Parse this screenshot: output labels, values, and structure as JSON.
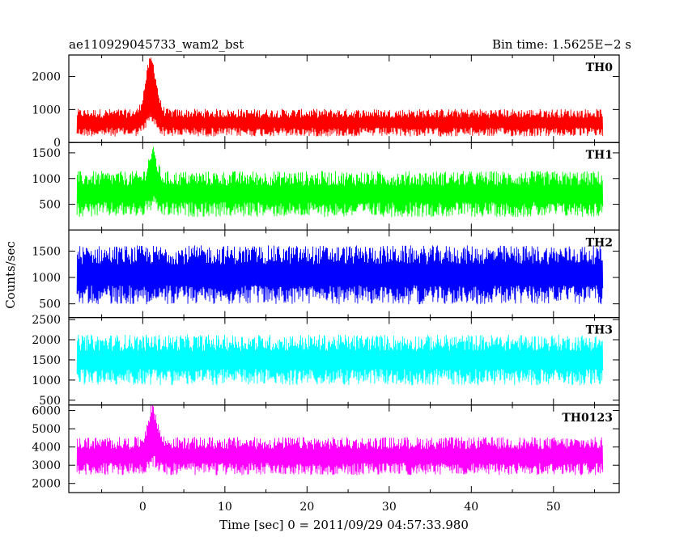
{
  "header": {
    "title": "ae110929045733_wam2_bst",
    "bin_time": "Bin time: 1.5625E−2 s"
  },
  "chart_data": {
    "type": "line",
    "xlabel": "Time [sec] 0 = 2011/09/29 04:57:33.980",
    "ylabel": "Counts/sec",
    "xlim": [
      -9,
      58
    ],
    "x_ticks": [
      0,
      10,
      20,
      30,
      40,
      50
    ],
    "x_range": [
      -8,
      56
    ],
    "panels": [
      {
        "name": "TH0",
        "color": "#ff0000",
        "ylim": [
          0,
          2650
        ],
        "yticks": [
          0,
          1000,
          2000
        ],
        "base": 600,
        "noise": 300,
        "burst": {
          "t": 1.0,
          "peak": 2500,
          "width": 0.9
        }
      },
      {
        "name": "TH1",
        "color": "#00ff00",
        "ylim": [
          0,
          1700
        ],
        "yticks": [
          500,
          1000,
          1500
        ],
        "base": 700,
        "noise": 320,
        "burst": {
          "t": 1.2,
          "peak": 1500,
          "width": 0.7
        }
      },
      {
        "name": "TH2",
        "color": "#0000ff",
        "ylim": [
          240,
          1900
        ],
        "yticks": [
          500,
          1000,
          1500
        ],
        "base": 1050,
        "noise": 400,
        "burst": null
      },
      {
        "name": "TH3",
        "color": "#00ffff",
        "ylim": [
          380,
          2550
        ],
        "yticks": [
          500,
          1000,
          1500,
          2000,
          2500
        ],
        "base": 1500,
        "noise": 450,
        "burst": null
      },
      {
        "name": "TH0123",
        "color": "#ff00ff",
        "ylim": [
          1500,
          6300
        ],
        "yticks": [
          2000,
          3000,
          4000,
          5000,
          6000
        ],
        "base": 3500,
        "noise": 750,
        "burst": {
          "t": 1.2,
          "peak": 6100,
          "width": 0.8
        }
      }
    ]
  }
}
